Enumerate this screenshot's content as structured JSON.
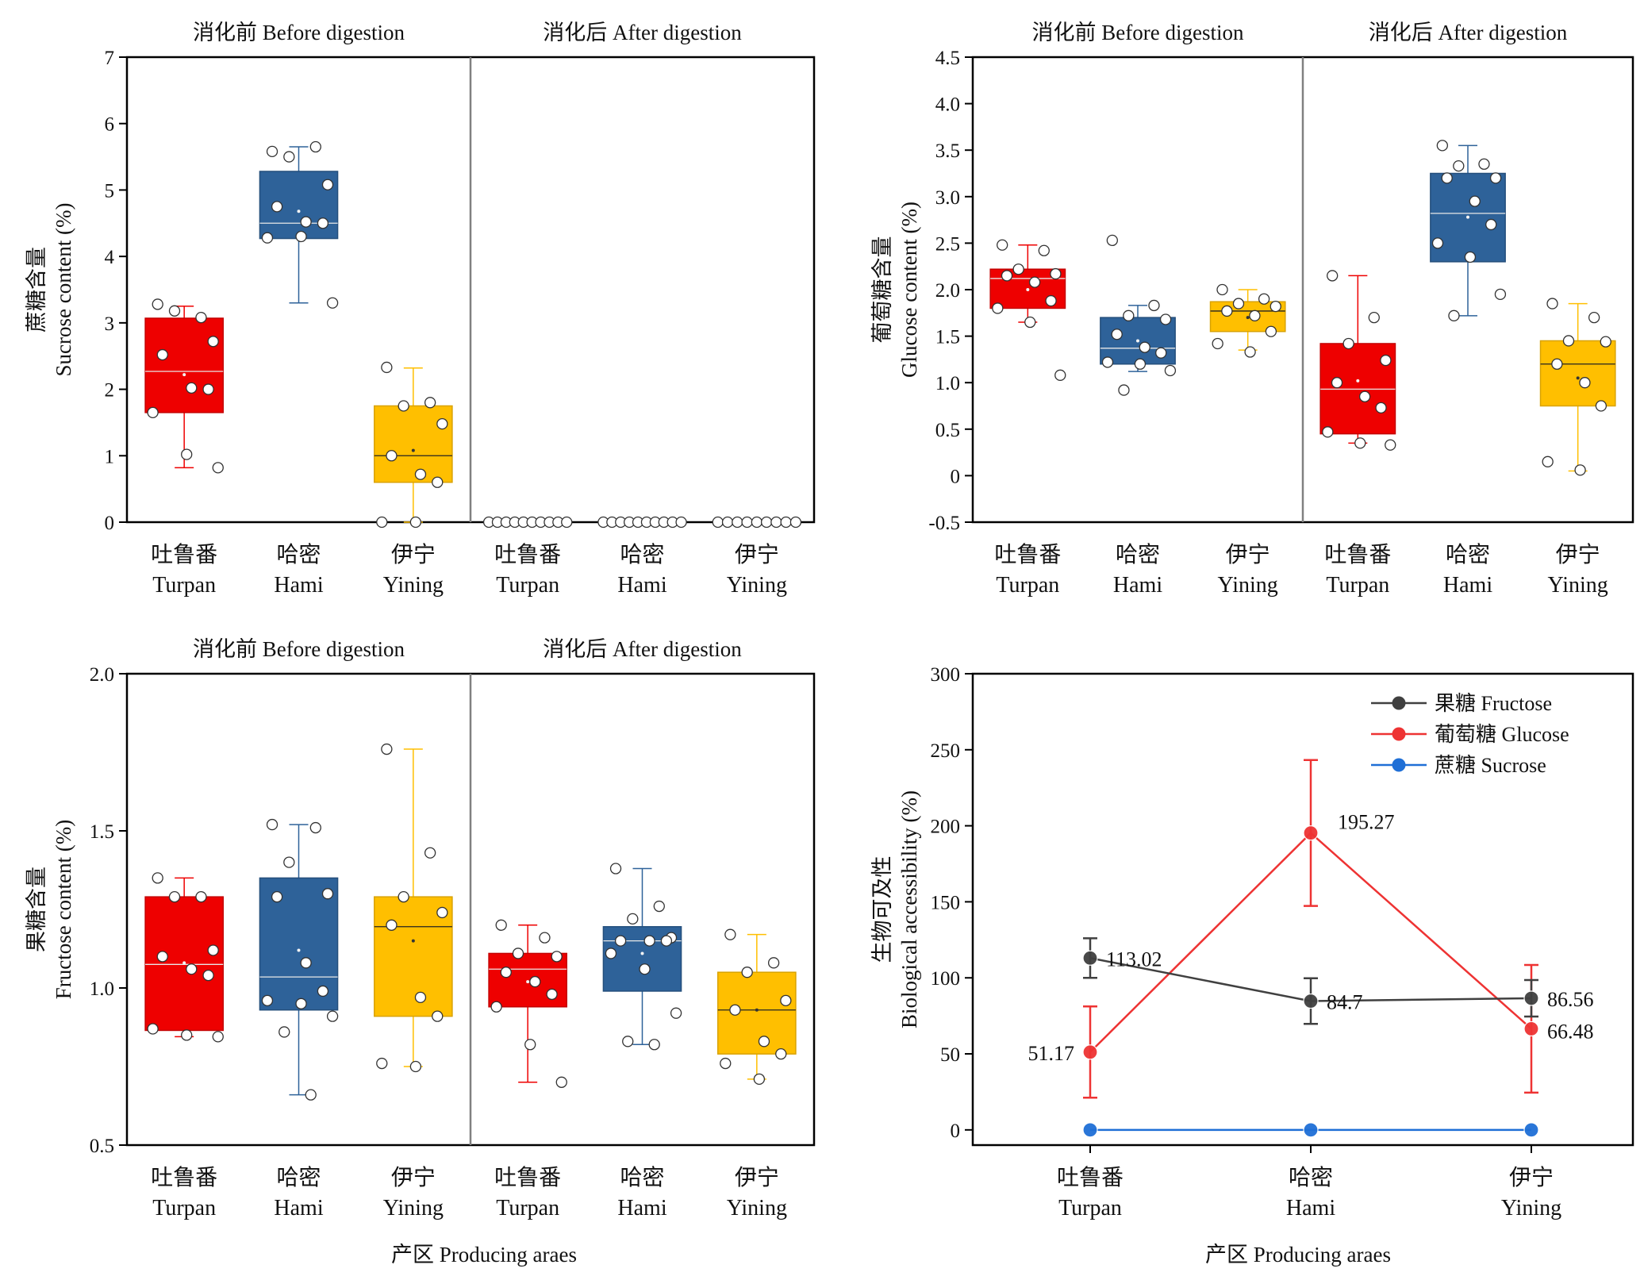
{
  "colors": {
    "red": "#ee0000",
    "blue": "#2e6299",
    "yellow": "#ffbf00",
    "fructose_line": "#404040",
    "glucose_line": "#ee3333",
    "sucrose_line": "#1f6fd6",
    "divider": "#808080"
  },
  "chart_data": [
    {
      "id": "sucrose",
      "type": "box",
      "ylabel_cn": "蔗糖含量",
      "ylabel_en": "Sucrose content (%)",
      "ylim": [
        0,
        7
      ],
      "yticks": [
        "0",
        "1",
        "2",
        "3",
        "4",
        "5",
        "6",
        "7"
      ],
      "sections": [
        "消化前 Before digestion",
        "消化后 After digestion"
      ],
      "categories_cn": [
        "吐鲁番",
        "哈密",
        "伊宁",
        "吐鲁番",
        "哈密",
        "伊宁"
      ],
      "categories_en": [
        "Turpan",
        "Hami",
        "Yining",
        "Turpan",
        "Hami",
        "Yining"
      ],
      "boxes": [
        {
          "q1": 1.65,
          "median": 2.27,
          "q3": 3.07,
          "whisker_low": 0.82,
          "whisker_high": 3.25,
          "mean": 2.22,
          "points": [
            3.28,
            3.08,
            3.18,
            2.72,
            2.52,
            2.02,
            2.0,
            1.65,
            1.02,
            0.82
          ]
        },
        {
          "q1": 4.27,
          "median": 4.5,
          "q3": 5.28,
          "whisker_low": 3.3,
          "whisker_high": 5.65,
          "mean": 4.68,
          "points": [
            5.58,
            5.65,
            5.5,
            5.08,
            4.75,
            4.52,
            4.5,
            4.28,
            4.3,
            3.3
          ]
        },
        {
          "q1": 0.6,
          "median": 1.0,
          "q3": 1.75,
          "whisker_low": 0.0,
          "whisker_high": 2.32,
          "mean": 1.08,
          "points": [
            2.33,
            1.8,
            1.75,
            1.48,
            1.0,
            0.72,
            0.6,
            0.0,
            0.0
          ]
        },
        {
          "q1": 0,
          "median": 0,
          "q3": 0,
          "whisker_low": 0,
          "whisker_high": 0,
          "mean": 0,
          "points": [
            0,
            0,
            0,
            0,
            0,
            0,
            0,
            0,
            0,
            0
          ]
        },
        {
          "q1": 0,
          "median": 0,
          "q3": 0,
          "whisker_low": 0,
          "whisker_high": 0,
          "mean": 0,
          "points": [
            0,
            0,
            0,
            0,
            0,
            0,
            0,
            0,
            0,
            0
          ]
        },
        {
          "q1": 0,
          "median": 0,
          "q3": 0,
          "whisker_low": 0,
          "whisker_high": 0,
          "mean": 0,
          "points": [
            0,
            0,
            0,
            0,
            0,
            0,
            0,
            0,
            0
          ]
        }
      ]
    },
    {
      "id": "glucose",
      "type": "box",
      "ylabel_cn": "葡萄糖含量",
      "ylabel_en": "Glucose content (%)",
      "ylim": [
        -0.5,
        4.5
      ],
      "yticks": [
        "-0.5",
        "0",
        "0.5",
        "1.0",
        "1.5",
        "2.0",
        "2.5",
        "3.0",
        "3.5",
        "4.0",
        "4.5"
      ],
      "sections": [
        "消化前 Before digestion",
        "消化后 After digestion"
      ],
      "categories_cn": [
        "吐鲁番",
        "哈密",
        "伊宁",
        "吐鲁番",
        "哈密",
        "伊宁"
      ],
      "categories_en": [
        "Turpan",
        "Hami",
        "Yining",
        "Turpan",
        "Hami",
        "Yining"
      ],
      "boxes": [
        {
          "q1": 1.8,
          "median": 2.12,
          "q3": 2.22,
          "whisker_low": 1.65,
          "whisker_high": 2.48,
          "mean": 2.0,
          "points": [
            2.48,
            2.42,
            2.22,
            2.17,
            2.15,
            2.08,
            1.88,
            1.8,
            1.65,
            1.08
          ]
        },
        {
          "q1": 1.2,
          "median": 1.37,
          "q3": 1.7,
          "whisker_low": 1.12,
          "whisker_high": 1.83,
          "mean": 1.45,
          "points": [
            2.53,
            1.83,
            1.72,
            1.68,
            1.52,
            1.38,
            1.32,
            1.22,
            1.2,
            1.13,
            0.92
          ]
        },
        {
          "q1": 1.55,
          "median": 1.77,
          "q3": 1.87,
          "whisker_low": 1.35,
          "whisker_high": 2.0,
          "mean": 1.7,
          "points": [
            2.0,
            1.9,
            1.85,
            1.82,
            1.77,
            1.72,
            1.55,
            1.42,
            1.33
          ]
        },
        {
          "q1": 0.45,
          "median": 0.93,
          "q3": 1.42,
          "whisker_low": 0.35,
          "whisker_high": 2.15,
          "mean": 1.02,
          "points": [
            2.15,
            1.7,
            1.42,
            1.24,
            1.0,
            0.85,
            0.73,
            0.47,
            0.35,
            0.33
          ]
        },
        {
          "q1": 2.3,
          "median": 2.82,
          "q3": 3.25,
          "whisker_low": 1.72,
          "whisker_high": 3.55,
          "mean": 2.78,
          "points": [
            3.55,
            3.35,
            3.33,
            3.2,
            3.2,
            2.95,
            2.7,
            2.5,
            2.35,
            1.95,
            1.72
          ]
        },
        {
          "q1": 0.75,
          "median": 1.2,
          "q3": 1.45,
          "whisker_low": 0.05,
          "whisker_high": 1.85,
          "mean": 1.05,
          "points": [
            1.85,
            1.7,
            1.45,
            1.44,
            1.2,
            1.0,
            0.75,
            0.15,
            0.06
          ]
        }
      ]
    },
    {
      "id": "fructose",
      "type": "box",
      "ylabel_cn": "果糖含量",
      "ylabel_en": "Fructose content (%)",
      "ylim": [
        0.5,
        2.0
      ],
      "yticks": [
        "0.5",
        "1.0",
        "1.5",
        "2.0"
      ],
      "sections": [
        "消化前 Before digestion",
        "消化后 After digestion"
      ],
      "categories_cn": [
        "吐鲁番",
        "哈密",
        "伊宁",
        "吐鲁番",
        "哈密",
        "伊宁"
      ],
      "categories_en": [
        "Turpan",
        "Hami",
        "Yining",
        "Turpan",
        "Hami",
        "Yining"
      ],
      "boxes": [
        {
          "q1": 0.865,
          "median": 1.075,
          "q3": 1.29,
          "whisker_low": 0.845,
          "whisker_high": 1.35,
          "mean": 1.08,
          "points": [
            1.35,
            1.29,
            1.29,
            1.12,
            1.1,
            1.06,
            1.04,
            0.87,
            0.85,
            0.845
          ]
        },
        {
          "q1": 0.93,
          "median": 1.035,
          "q3": 1.35,
          "whisker_low": 0.66,
          "whisker_high": 1.52,
          "mean": 1.12,
          "points": [
            1.52,
            1.51,
            1.4,
            1.3,
            1.29,
            1.08,
            0.99,
            0.96,
            0.95,
            0.91,
            0.86,
            0.66
          ]
        },
        {
          "q1": 0.91,
          "median": 1.195,
          "q3": 1.29,
          "whisker_low": 0.75,
          "whisker_high": 1.76,
          "mean": 1.15,
          "points": [
            1.76,
            1.43,
            1.29,
            1.24,
            1.2,
            0.97,
            0.91,
            0.76,
            0.75
          ]
        },
        {
          "q1": 0.94,
          "median": 1.06,
          "q3": 1.11,
          "whisker_low": 0.7,
          "whisker_high": 1.2,
          "mean": 1.02,
          "points": [
            1.2,
            1.16,
            1.11,
            1.1,
            1.05,
            1.02,
            0.98,
            0.94,
            0.82,
            0.7
          ]
        },
        {
          "q1": 0.99,
          "median": 1.15,
          "q3": 1.195,
          "whisker_low": 0.82,
          "whisker_high": 1.38,
          "mean": 1.11,
          "points": [
            1.38,
            1.26,
            1.22,
            1.16,
            1.15,
            1.15,
            1.15,
            1.11,
            1.06,
            0.92,
            0.83,
            0.82
          ]
        },
        {
          "q1": 0.79,
          "median": 0.93,
          "q3": 1.05,
          "whisker_low": 0.71,
          "whisker_high": 1.17,
          "mean": 0.93,
          "points": [
            1.17,
            1.08,
            1.05,
            0.96,
            0.93,
            0.83,
            0.79,
            0.76,
            0.71
          ]
        }
      ]
    },
    {
      "id": "accessibility",
      "type": "line",
      "ylabel_cn": "生物可及性",
      "ylabel_en": "Biological accessibility (%)",
      "xlabel": "产区 Producing araes",
      "ylim": [
        -10,
        300
      ],
      "yticks": [
        0,
        50,
        100,
        150,
        200,
        250,
        300
      ],
      "categories_cn": [
        "吐鲁番",
        "哈密",
        "伊宁"
      ],
      "categories_en": [
        "Turpan",
        "Hami",
        "Yining"
      ],
      "legend_position": "top-right",
      "series": [
        {
          "name": "果糖 Fructose",
          "color_key": "fructose_line",
          "values": [
            113.02,
            84.7,
            86.56
          ],
          "err": [
            13,
            15,
            12
          ],
          "labels": [
            "113.02",
            "84.7",
            "86.56"
          ]
        },
        {
          "name": "葡萄糖 Glucose",
          "color_key": "glucose_line",
          "values": [
            51.17,
            195.27,
            66.48
          ],
          "err": [
            30,
            48,
            42
          ],
          "labels": [
            "51.17",
            "195.27",
            "66.48"
          ]
        },
        {
          "name": "蔗糖 Sucrose",
          "color_key": "sucrose_line",
          "values": [
            0,
            0,
            0
          ],
          "err": [
            0,
            0,
            0
          ],
          "labels": []
        }
      ]
    }
  ],
  "xlabel_bottom_left": "产区 Producing araes"
}
